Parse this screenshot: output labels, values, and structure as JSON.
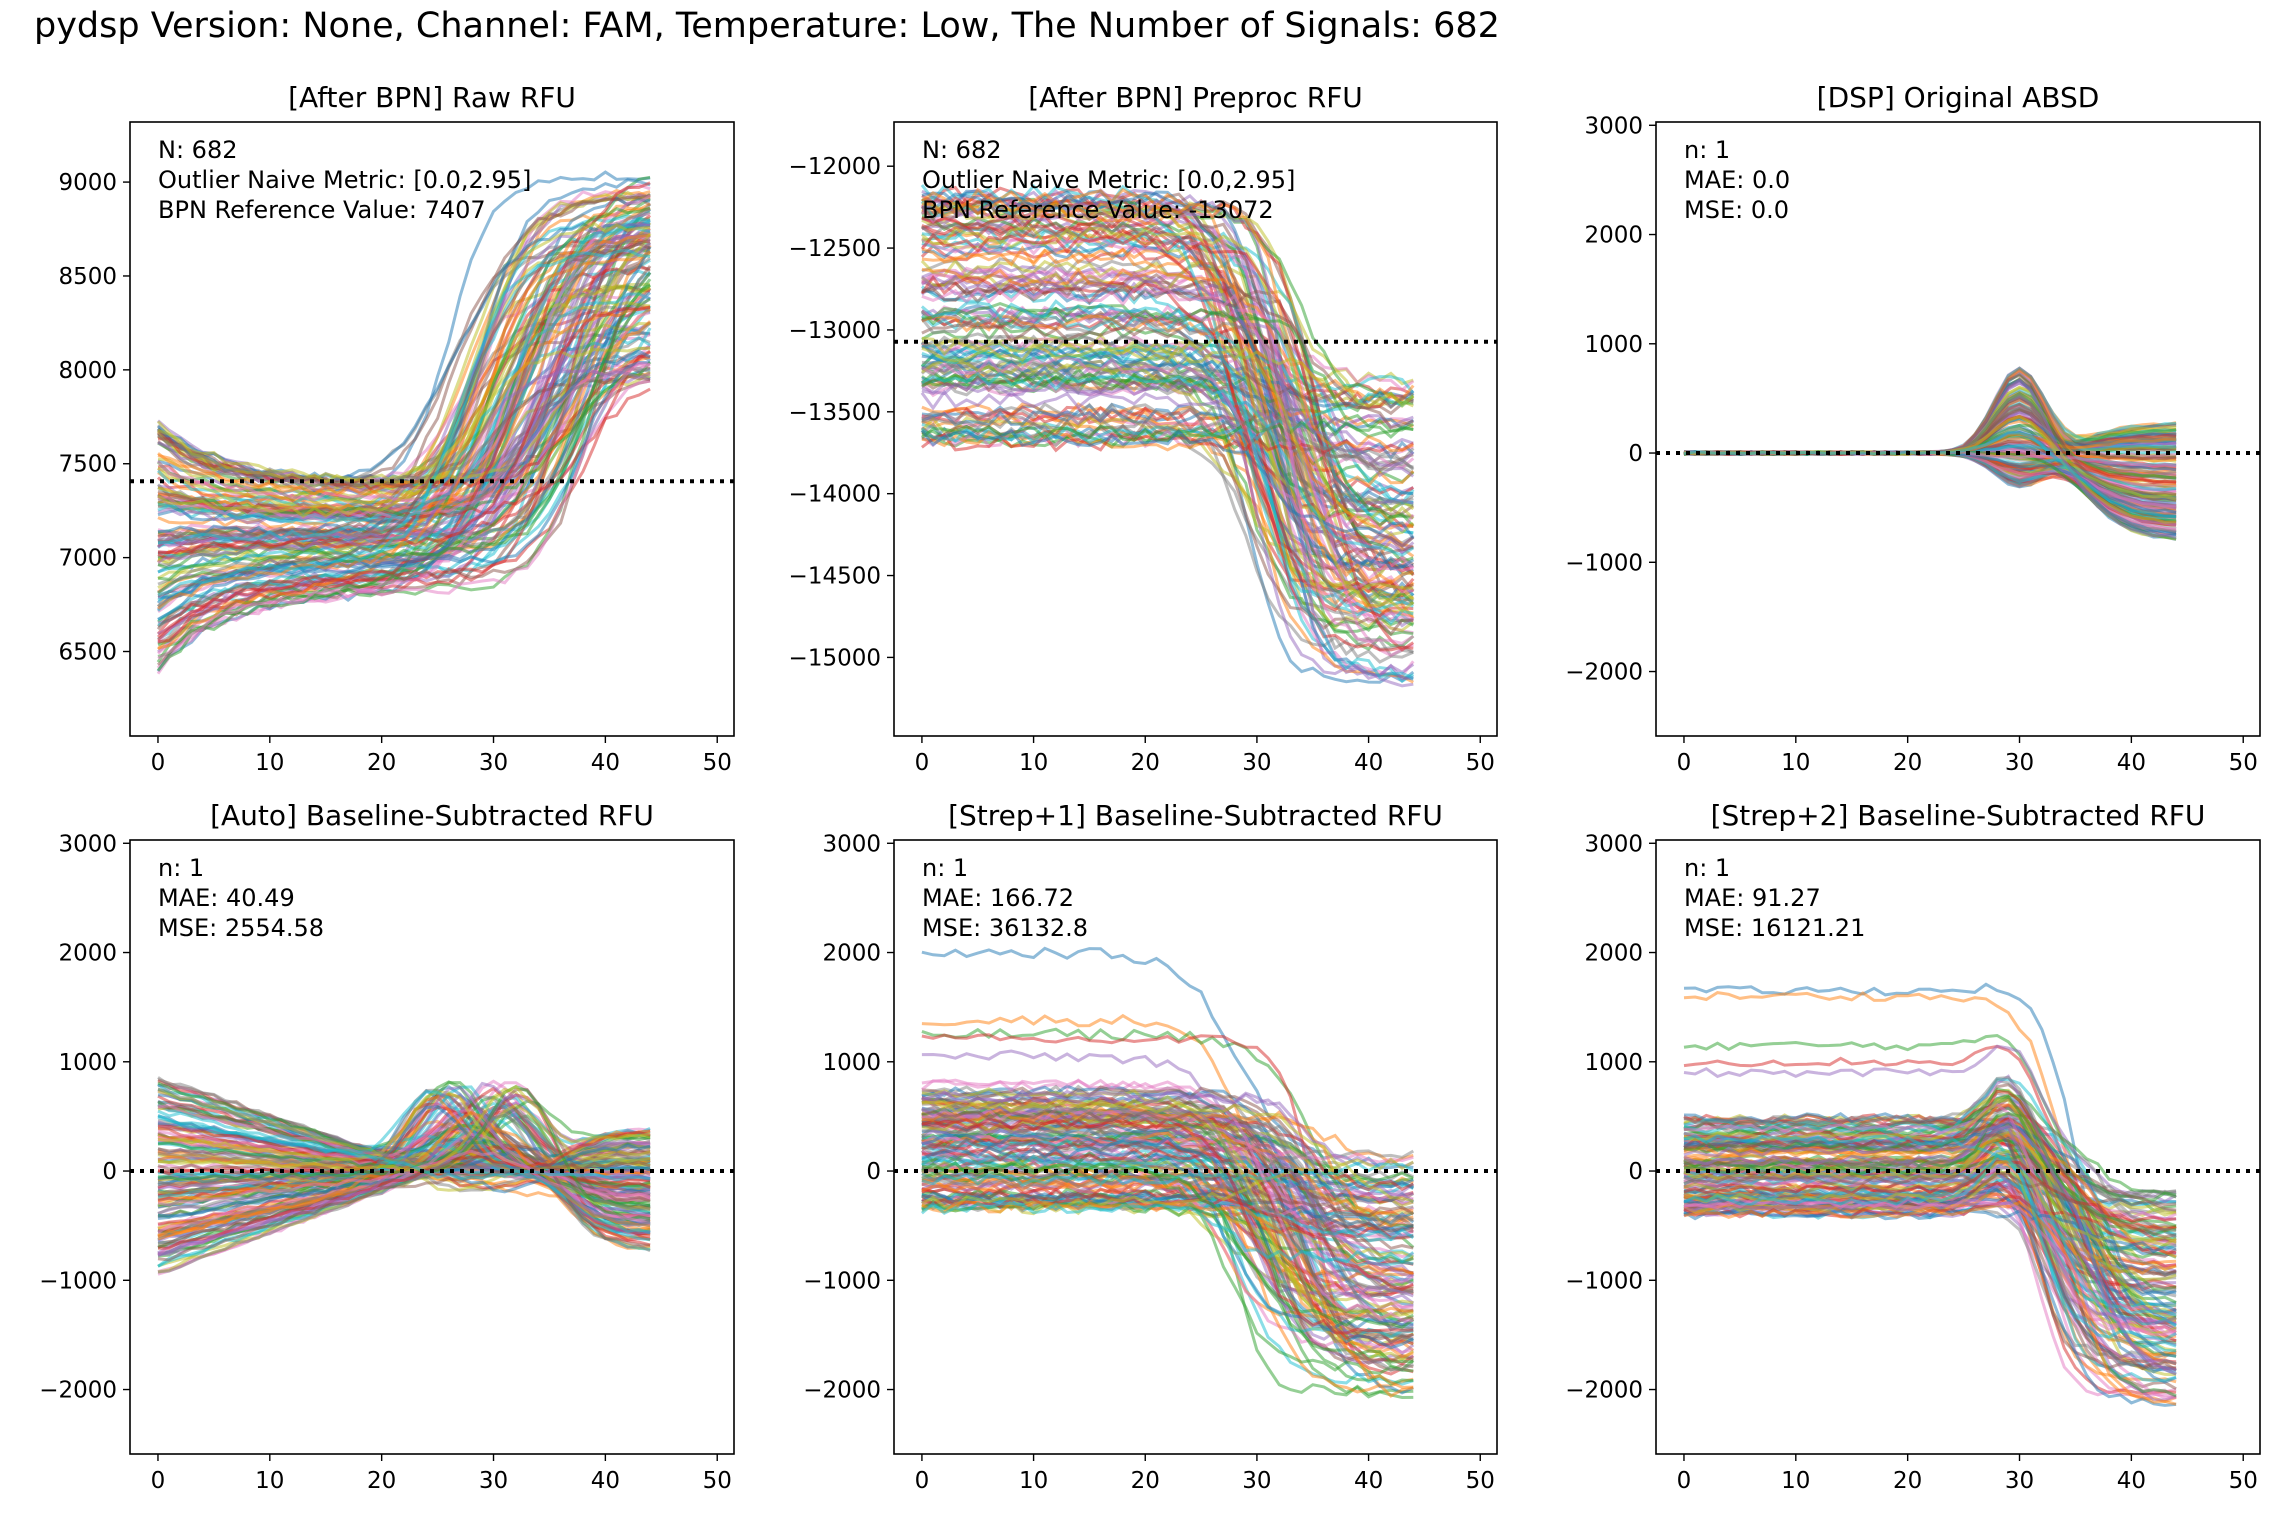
{
  "suptitle": "pydsp Version: None, Channel: FAM, Temperature: Low, The Number of Signals: 682",
  "colors": [
    "#1f77b4",
    "#ff7f0e",
    "#2ca02c",
    "#d62728",
    "#9467bd",
    "#8c564b",
    "#e377c2",
    "#7f7f7f",
    "#bcbd22",
    "#17becf"
  ],
  "chart_data": [
    {
      "type": "line",
      "title": "[After BPN] Raw RFU",
      "xlim": [
        -2.5,
        51.5
      ],
      "ylim": [
        6050,
        9320
      ],
      "xticks": [
        0,
        10,
        20,
        30,
        40,
        50
      ],
      "yticks": [
        6500,
        7000,
        7500,
        8000,
        8500,
        9000
      ],
      "reference_line": 7407,
      "annotations": [
        {
          "label": "N",
          "value": "682"
        },
        {
          "label": "Outlier Naive Metric",
          "value": "[0.0,2.95]"
        },
        {
          "label": "BPN Reference Value",
          "value": "7407"
        }
      ],
      "n_signals": 682,
      "shape": "sigmoid_rise",
      "cycles": 45,
      "baseline_range": [
        6400,
        7750
      ],
      "plateau_range": [
        7950,
        9080
      ],
      "midpoint_range": [
        26,
        39
      ]
    },
    {
      "type": "line",
      "title": "[After BPN] Preproc RFU",
      "xlim": [
        -2.5,
        51.5
      ],
      "ylim": [
        -15480,
        -11730
      ],
      "xticks": [
        0,
        10,
        20,
        30,
        40,
        50
      ],
      "yticks": [
        -15000,
        -14500,
        -14000,
        -13500,
        -13000,
        -12500,
        -12000
      ],
      "reference_line": -13072,
      "annotations": [
        {
          "label": "N",
          "value": "682"
        },
        {
          "label": "Outlier Naive Metric",
          "value": "[0.0,2.95]"
        },
        {
          "label": "BPN Reference Value",
          "value": "-13072"
        }
      ],
      "n_signals": 682,
      "shape": "sigmoid_fall",
      "cycles": 45,
      "baseline_range": [
        -13700,
        -12150
      ],
      "plateau_range": [
        -15150,
        -13300
      ],
      "midpoint_range": [
        28,
        36
      ]
    },
    {
      "type": "line",
      "title": "[DSP] Original ABSD",
      "xlim": [
        -2.5,
        51.5
      ],
      "ylim": [
        -2590,
        3030
      ],
      "xticks": [
        0,
        10,
        20,
        30,
        40,
        50
      ],
      "yticks": [
        -2000,
        -1000,
        0,
        1000,
        2000,
        3000
      ],
      "reference_line": 0,
      "annotations": [
        {
          "label": "n",
          "value": "1"
        },
        {
          "label": "MAE",
          "value": "0.0"
        },
        {
          "label": "MSE",
          "value": "0.0"
        }
      ],
      "n_signals": 682,
      "shape": "bump",
      "cycles": 45,
      "bump_peak_range": [
        -300,
        780
      ],
      "bump_center": 30,
      "tail_range": [
        -800,
        280
      ]
    },
    {
      "type": "line",
      "title": "[Auto] Baseline-Subtracted RFU",
      "xlim": [
        -2.5,
        51.5
      ],
      "ylim": [
        -2590,
        3030
      ],
      "xticks": [
        0,
        10,
        20,
        30,
        40,
        50
      ],
      "yticks": [
        -2000,
        -1000,
        0,
        1000,
        2000,
        3000
      ],
      "reference_line": 0,
      "annotations": [
        {
          "label": "n",
          "value": "1"
        },
        {
          "label": "MAE",
          "value": "40.49"
        },
        {
          "label": "MSE",
          "value": "2554.58"
        }
      ],
      "n_signals": 682,
      "shape": "tilt_bump",
      "cycles": 45,
      "start_range": [
        -950,
        870
      ],
      "bump_peak_range": [
        -200,
        820
      ],
      "tail_range": [
        -720,
        380
      ]
    },
    {
      "type": "line",
      "title": "[Strep+1] Baseline-Subtracted RFU",
      "xlim": [
        -2.5,
        51.5
      ],
      "ylim": [
        -2590,
        3030
      ],
      "xticks": [
        0,
        10,
        20,
        30,
        40,
        50
      ],
      "yticks": [
        -2000,
        -1000,
        0,
        1000,
        2000,
        3000
      ],
      "reference_line": 0,
      "annotations": [
        {
          "label": "n",
          "value": "1"
        },
        {
          "label": "MAE",
          "value": "166.72"
        },
        {
          "label": "MSE",
          "value": "36132.8"
        }
      ],
      "n_signals": 682,
      "shape": "sigmoid_fall",
      "cycles": 45,
      "baseline_range": [
        -350,
        800
      ],
      "high_outliers": [
        2000,
        1380,
        1250,
        1200,
        1050
      ],
      "plateau_range": [
        -2050,
        150
      ],
      "midpoint_range": [
        27,
        37
      ]
    },
    {
      "type": "line",
      "title": "[Strep+2] Baseline-Subtracted RFU",
      "xlim": [
        -2.5,
        51.5
      ],
      "ylim": [
        -2590,
        3030
      ],
      "xticks": [
        0,
        10,
        20,
        30,
        40,
        50
      ],
      "yticks": [
        -2000,
        -1000,
        0,
        1000,
        2000,
        3000
      ],
      "reference_line": 0,
      "annotations": [
        {
          "label": "n",
          "value": "1"
        },
        {
          "label": "MAE",
          "value": "91.27"
        },
        {
          "label": "MSE",
          "value": "16121.21"
        }
      ],
      "n_signals": 682,
      "shape": "bump_fall",
      "cycles": 45,
      "baseline_range": [
        -400,
        500
      ],
      "high_outliers": [
        1650,
        1600,
        1150,
        1000,
        900
      ],
      "plateau_range": [
        -2150,
        -200
      ],
      "midpoint_range": [
        31,
        38
      ]
    }
  ]
}
